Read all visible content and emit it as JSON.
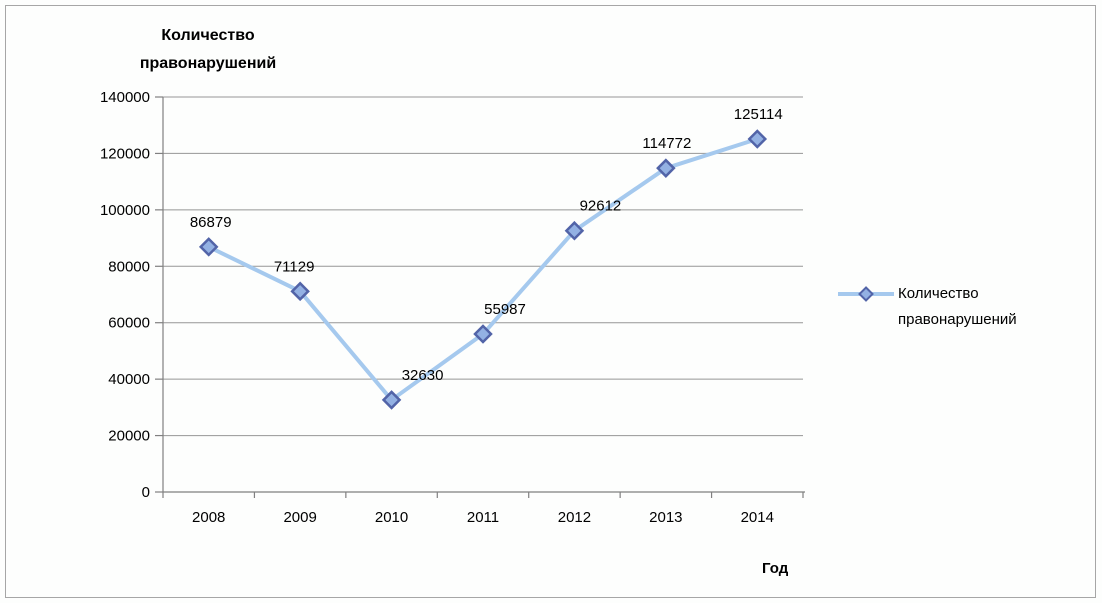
{
  "window": {
    "background": "#fdfefd",
    "border_color": "#a6a6a6"
  },
  "chart_data": {
    "type": "line",
    "title": "Количество правонарушений",
    "xlabel": "Год",
    "ylabel": "Количество правонарушений",
    "categories": [
      "2008",
      "2009",
      "2010",
      "2011",
      "2012",
      "2013",
      "2014"
    ],
    "series": [
      {
        "name": "Количество правонарушений",
        "values": [
          86879,
          71129,
          32630,
          55987,
          92612,
          114772,
          125114
        ]
      }
    ],
    "data_labels": [
      "86879",
      "71129",
      "32630",
      "55987",
      "92612",
      "114772",
      "125114"
    ],
    "ylim": [
      0,
      140000
    ],
    "ytick_step": 20000,
    "ytick_labels": [
      "0",
      "20000",
      "40000",
      "60000",
      "80000",
      "100000",
      "120000",
      "140000"
    ],
    "grid": true,
    "legend_position": "right",
    "colors": {
      "line": "#a5c9ee",
      "marker_fill": "#93b1e3",
      "marker_border": "#5264a8",
      "gridline": "#969696",
      "axis": "#808080",
      "text": "#000000"
    }
  }
}
